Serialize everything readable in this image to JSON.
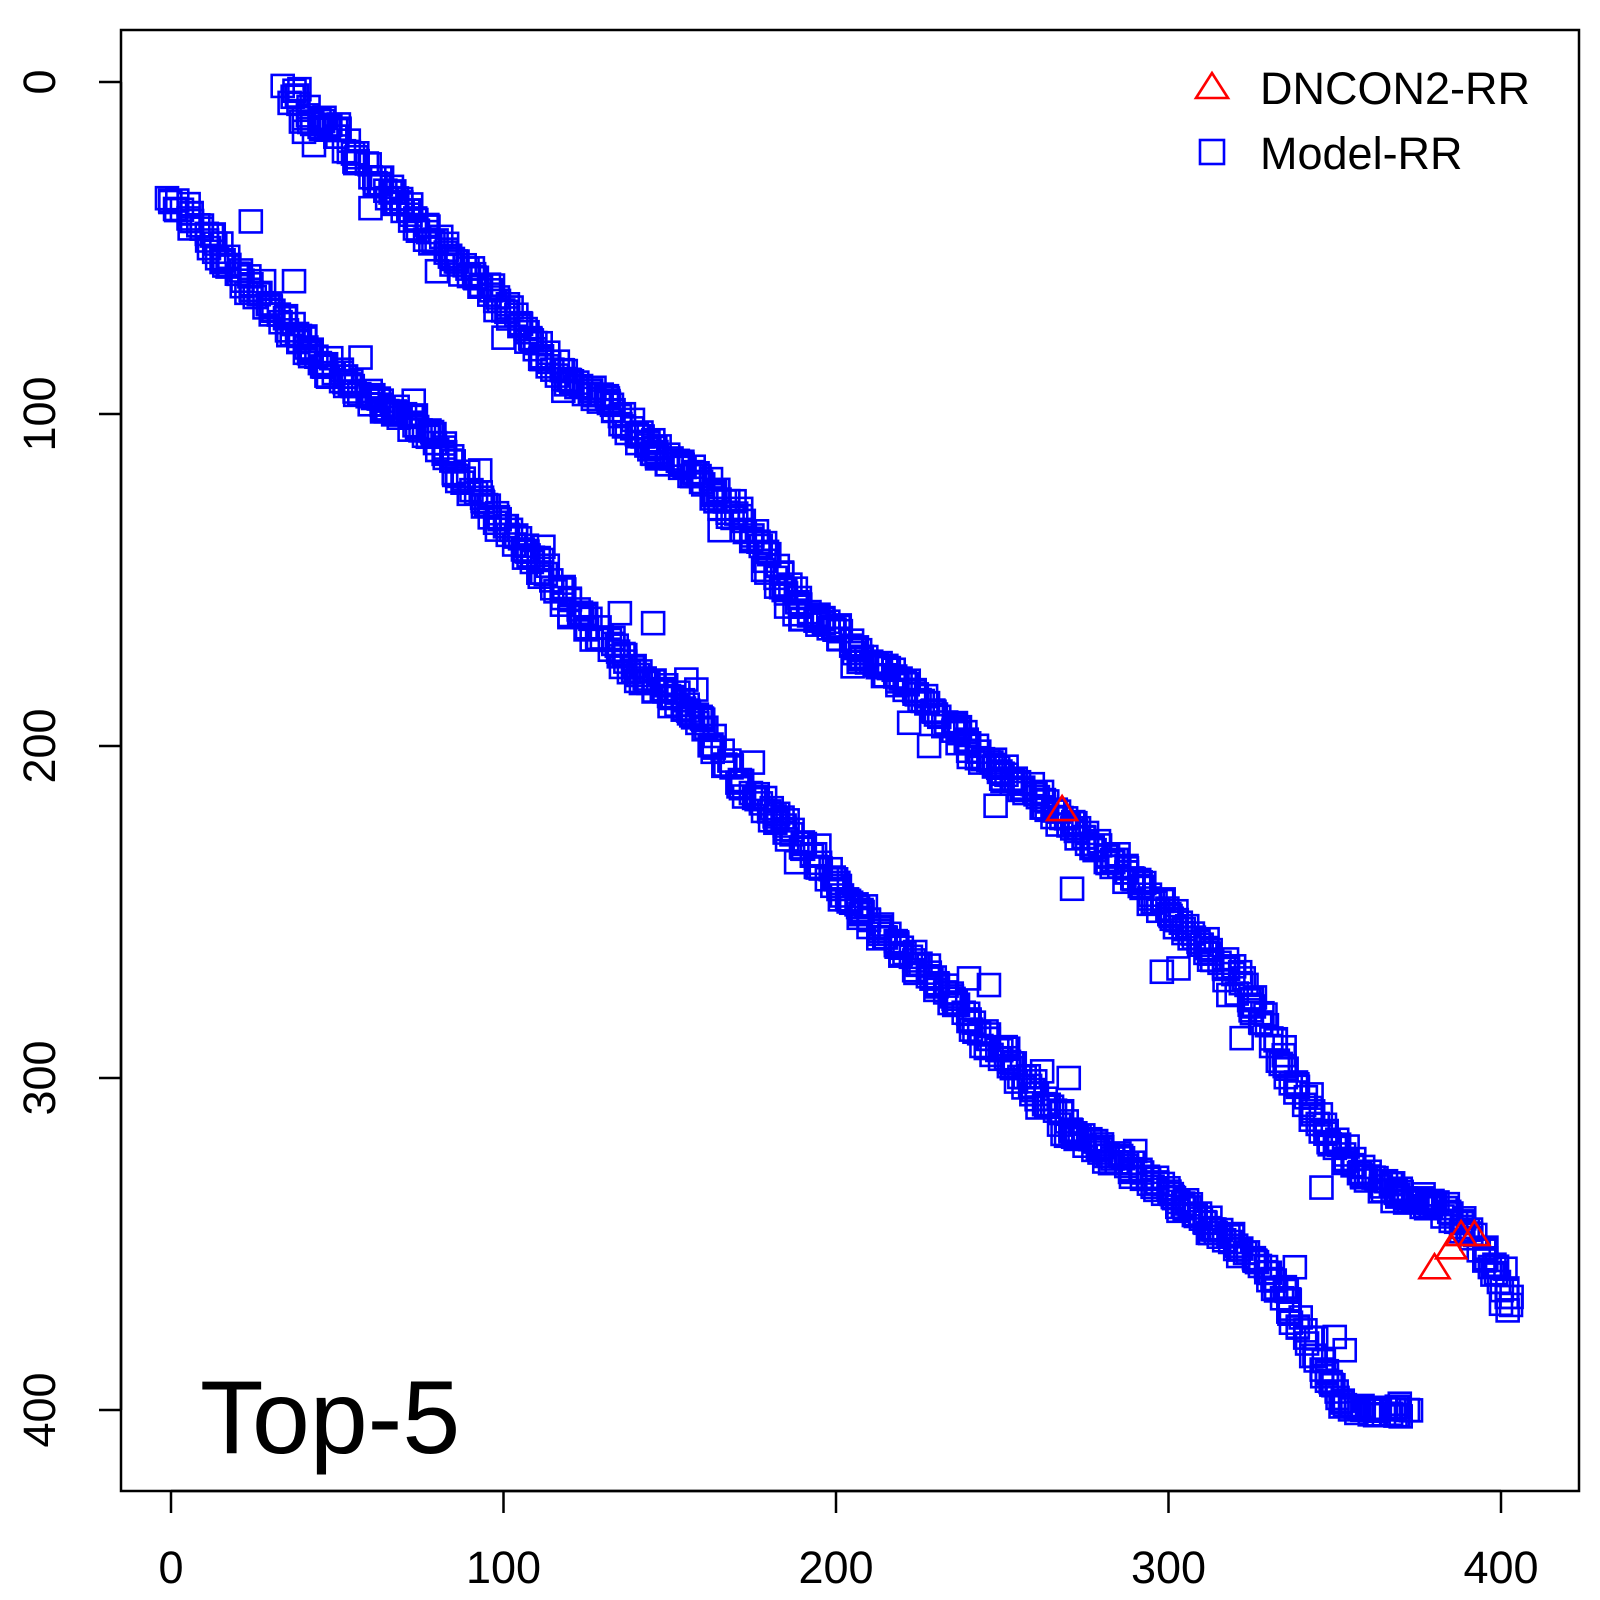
{
  "chart_data": {
    "type": "scatter",
    "title": "",
    "panel_label": "Top-5",
    "xlabel": "",
    "ylabel": "",
    "xlim": [
      -15,
      425
    ],
    "ylim": [
      -15,
      425
    ],
    "y_inverted": true,
    "x_ticks": [
      0,
      100,
      200,
      300,
      400
    ],
    "y_ticks": [
      0,
      100,
      200,
      300,
      400
    ],
    "grid": false,
    "legend": {
      "placement": "top-right",
      "entries": [
        {
          "label": "DNCON2-RR",
          "color": "#ff0000",
          "marker": "triangle"
        },
        {
          "label": "Model-RR",
          "color": "#0000ff",
          "marker": "square"
        }
      ]
    },
    "series": [
      {
        "name": "DNCON2-RR",
        "color": "#ff0000",
        "marker": "triangle",
        "points": [
          [
            268,
            219
          ],
          [
            380,
            357
          ],
          [
            385,
            351
          ],
          [
            388,
            347
          ],
          [
            392,
            347
          ]
        ]
      },
      {
        "name": "Model-RR",
        "color": "#0000ff",
        "marker": "square",
        "segments": [
          {
            "noise": 4,
            "anchors": [
              [
                35,
                0
              ],
              [
                40,
                10
              ],
              [
                50,
                15
              ],
              [
                60,
                28
              ],
              [
                70,
                38
              ],
              [
                80,
                48
              ],
              [
                90,
                58
              ],
              [
                100,
                68
              ],
              [
                110,
                80
              ],
              [
                120,
                90
              ],
              [
                130,
                95
              ],
              [
                140,
                105
              ],
              [
                150,
                115
              ],
              [
                160,
                120
              ],
              [
                170,
                130
              ],
              [
                180,
                145
              ],
              [
                190,
                160
              ],
              [
                200,
                165
              ],
              [
                210,
                175
              ],
              [
                220,
                180
              ],
              [
                230,
                190
              ],
              [
                240,
                200
              ],
              [
                250,
                208
              ],
              [
                260,
                215
              ],
              [
                270,
                225
              ],
              [
                280,
                232
              ],
              [
                290,
                240
              ],
              [
                300,
                250
              ],
              [
                310,
                260
              ],
              [
                320,
                270
              ],
              [
                330,
                285
              ],
              [
                340,
                305
              ],
              [
                350,
                320
              ],
              [
                360,
                330
              ],
              [
                370,
                336
              ],
              [
                380,
                338
              ],
              [
                390,
                345
              ],
              [
                395,
                355
              ],
              [
                400,
                360
              ],
              [
                402,
                370
              ]
            ]
          },
          {
            "noise": 4,
            "anchors": [
              [
                0,
                35
              ],
              [
                10,
                45
              ],
              [
                20,
                58
              ],
              [
                30,
                68
              ],
              [
                40,
                80
              ],
              [
                50,
                88
              ],
              [
                60,
                95
              ],
              [
                70,
                100
              ],
              [
                80,
                108
              ],
              [
                90,
                122
              ],
              [
                100,
                135
              ],
              [
                110,
                145
              ],
              [
                120,
                158
              ],
              [
                130,
                168
              ],
              [
                140,
                178
              ],
              [
                150,
                185
              ],
              [
                160,
                193
              ],
              [
                170,
                210
              ],
              [
                180,
                220
              ],
              [
                190,
                230
              ],
              [
                200,
                242
              ],
              [
                210,
                252
              ],
              [
                220,
                262
              ],
              [
                230,
                270
              ],
              [
                240,
                283
              ],
              [
                250,
                293
              ],
              [
                260,
                305
              ],
              [
                270,
                315
              ],
              [
                280,
                322
              ],
              [
                290,
                328
              ],
              [
                300,
                336
              ],
              [
                310,
                342
              ],
              [
                320,
                350
              ],
              [
                330,
                360
              ],
              [
                340,
                375
              ],
              [
                345,
                385
              ],
              [
                350,
                393
              ],
              [
                355,
                400
              ],
              [
                365,
                400
              ],
              [
                372,
                400
              ]
            ]
          }
        ],
        "outliers": [
          [
            40,
            15
          ],
          [
            43,
            19
          ],
          [
            60,
            38
          ],
          [
            65,
            35
          ],
          [
            80,
            57
          ],
          [
            100,
            77
          ],
          [
            118,
            93
          ],
          [
            145,
            112
          ],
          [
            165,
            135
          ],
          [
            170,
            130
          ],
          [
            182,
            152
          ],
          [
            185,
            158
          ],
          [
            205,
            176
          ],
          [
            222,
            193
          ],
          [
            228,
            200
          ],
          [
            248,
            218
          ],
          [
            271,
            243
          ],
          [
            298,
            268
          ],
          [
            303,
            267
          ],
          [
            318,
            275
          ],
          [
            322,
            288
          ],
          [
            24,
            42
          ],
          [
            37,
            60
          ],
          [
            28,
            60
          ],
          [
            57,
            83
          ],
          [
            73,
            96
          ],
          [
            82,
            112
          ],
          [
            93,
            117
          ],
          [
            112,
            140
          ],
          [
            135,
            160
          ],
          [
            145,
            163
          ],
          [
            155,
            180
          ],
          [
            158,
            183
          ],
          [
            175,
            205
          ],
          [
            188,
            235
          ],
          [
            195,
            230
          ],
          [
            208,
            250
          ],
          [
            218,
            260
          ],
          [
            230,
            272
          ],
          [
            240,
            270
          ],
          [
            246,
            272
          ],
          [
            262,
            298
          ],
          [
            270,
            300
          ],
          [
            280,
            320
          ],
          [
            290,
            322
          ],
          [
            303,
            340
          ],
          [
            335,
            363
          ],
          [
            350,
            378
          ],
          [
            353,
            382
          ],
          [
            338,
            357
          ],
          [
            346,
            333
          ],
          [
            384,
            338
          ],
          [
            395,
            352
          ],
          [
            400,
            368
          ]
        ]
      }
    ]
  }
}
